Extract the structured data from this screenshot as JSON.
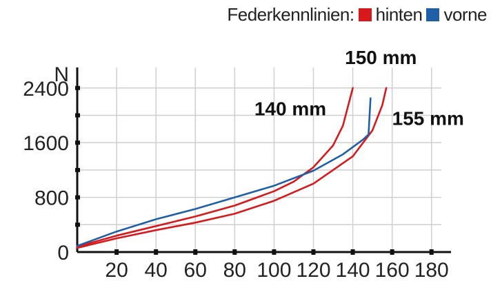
{
  "legend": {
    "label": "Federkennlinien:",
    "items": [
      {
        "name": "hinten",
        "color": "#d7191c"
      },
      {
        "name": "vorne",
        "color": "#1f5fa8"
      }
    ]
  },
  "chart_data": {
    "type": "line",
    "title": "",
    "xlabel": "",
    "ylabel": "N",
    "xlim": [
      0,
      185
    ],
    "ylim": [
      0,
      2700
    ],
    "x_ticks": [
      20,
      40,
      60,
      80,
      100,
      120,
      140,
      160,
      180
    ],
    "y_ticks": [
      0,
      800,
      1600,
      2400
    ],
    "grid": true,
    "legend_position": "top-right",
    "annotations": [
      {
        "text": "150 mm",
        "x": 136,
        "y": 2750
      },
      {
        "text": "140 mm",
        "x": 90,
        "y": 2000
      },
      {
        "text": "155 mm",
        "x": 160,
        "y": 1860
      }
    ],
    "series": [
      {
        "group": "hinten",
        "color": "#d7191c",
        "label": "140 mm",
        "points": [
          [
            0,
            80
          ],
          [
            20,
            240
          ],
          [
            40,
            380
          ],
          [
            60,
            520
          ],
          [
            80,
            680
          ],
          [
            100,
            890
          ],
          [
            110,
            1030
          ],
          [
            120,
            1240
          ],
          [
            130,
            1560
          ],
          [
            135,
            1850
          ],
          [
            140,
            2400
          ]
        ]
      },
      {
        "group": "hinten",
        "color": "#d7191c",
        "label": "155 mm",
        "points": [
          [
            0,
            60
          ],
          [
            20,
            200
          ],
          [
            40,
            320
          ],
          [
            60,
            430
          ],
          [
            80,
            560
          ],
          [
            100,
            750
          ],
          [
            120,
            1000
          ],
          [
            140,
            1400
          ],
          [
            150,
            1780
          ],
          [
            155,
            2150
          ],
          [
            157,
            2400
          ]
        ]
      },
      {
        "group": "vorne",
        "color": "#1f5fa8",
        "label": "150 mm",
        "points": [
          [
            0,
            90
          ],
          [
            20,
            300
          ],
          [
            40,
            480
          ],
          [
            60,
            630
          ],
          [
            80,
            800
          ],
          [
            100,
            970
          ],
          [
            120,
            1190
          ],
          [
            135,
            1430
          ],
          [
            145,
            1640
          ],
          [
            148,
            1720
          ],
          [
            149,
            2250
          ]
        ]
      }
    ]
  }
}
